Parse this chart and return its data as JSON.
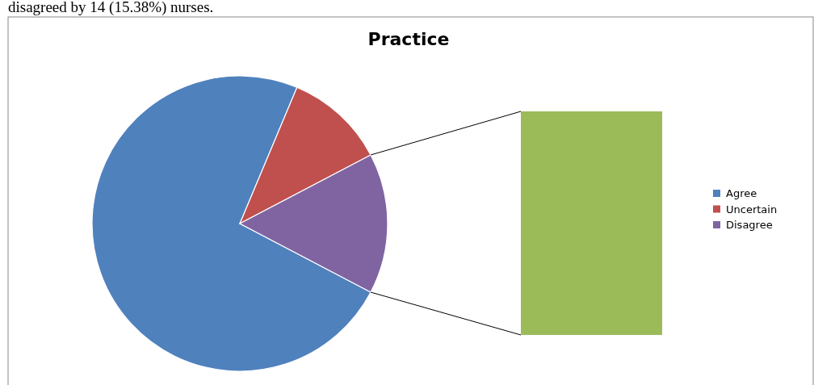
{
  "chart_data": {
    "type": "pie",
    "title": "Practice",
    "categories": [
      "Agree",
      "Uncertain",
      "Disagree"
    ],
    "values": [
      73.63,
      10.99,
      15.38
    ],
    "colors": [
      "#4f81bd",
      "#c0504d",
      "#8064a2"
    ],
    "legend": "right",
    "annotations": [
      "disagreed by 14 (15.38%) nurses."
    ]
  }
}
